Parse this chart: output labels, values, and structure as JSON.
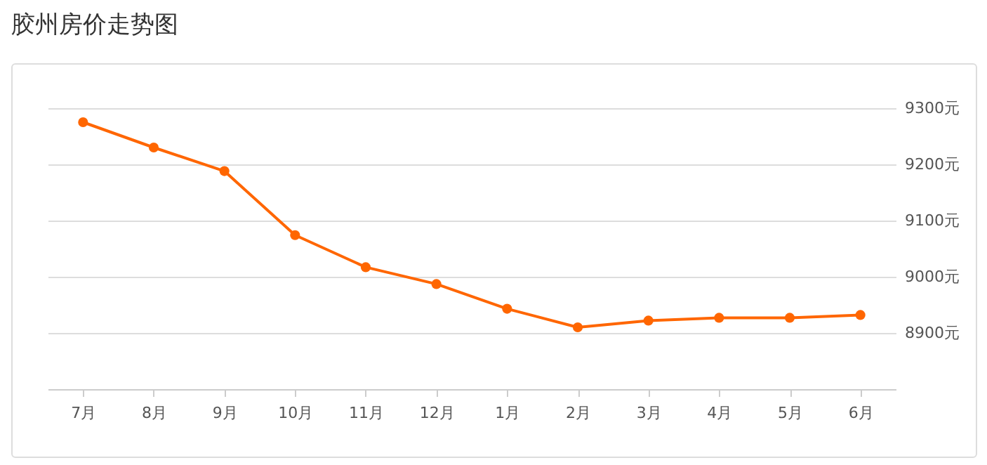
{
  "chart_data": {
    "type": "line",
    "title": "胶州房价走势图",
    "categories": [
      "7月",
      "8月",
      "9月",
      "10月",
      "11月",
      "12月",
      "1月",
      "2月",
      "3月",
      "4月",
      "5月",
      "6月"
    ],
    "series": [
      {
        "color": "#ff6600",
        "values": [
          9275,
          9230,
          9188,
          9074,
          9017,
          8987,
          8943,
          8910,
          8922,
          8927,
          8927,
          8932
        ]
      }
    ],
    "ylim": [
      8800,
      9300
    ],
    "yticks": [
      {
        "value": 8900,
        "label": "8900元"
      },
      {
        "value": 9000,
        "label": "9000元"
      },
      {
        "value": 9100,
        "label": "9100元"
      },
      {
        "value": 9200,
        "label": "9200元"
      },
      {
        "value": 9300,
        "label": "9300元"
      }
    ],
    "grid": "y",
    "marker": "circle",
    "line_style": "solid"
  }
}
